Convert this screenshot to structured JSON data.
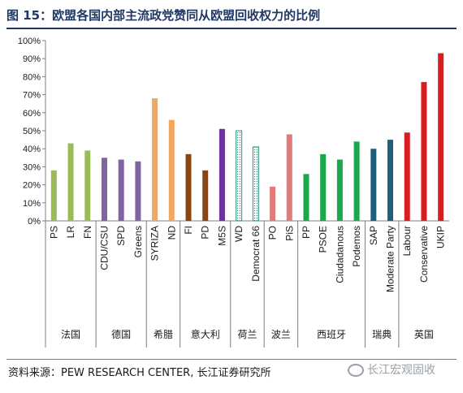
{
  "title": "图 15：欧盟各国内部主流政党赞同从欧盟回收权力的比例",
  "source": "资料来源：PEW RESEARCH CENTER, 长江证券研究所",
  "watermark": "长江宏观固收",
  "chart_data": {
    "type": "bar",
    "ylim": [
      0,
      100
    ],
    "yticks": [
      "0%",
      "10%",
      "20%",
      "30%",
      "40%",
      "50%",
      "60%",
      "70%",
      "80%",
      "90%",
      "100%"
    ],
    "groups": [
      {
        "name": "法国",
        "parties": [
          {
            "name": "PS",
            "value": 28,
            "color": "#9bbb59",
            "pattern": "solid"
          },
          {
            "name": "LR",
            "value": 43,
            "color": "#9bbb59",
            "pattern": "solid"
          },
          {
            "name": "FN",
            "value": 39,
            "color": "#9bbb59",
            "pattern": "solid"
          }
        ]
      },
      {
        "name": "德国",
        "parties": [
          {
            "name": "CDU/CSU",
            "value": 35,
            "color": "#8064a2",
            "pattern": "solid"
          },
          {
            "name": "SPD",
            "value": 34,
            "color": "#8064a2",
            "pattern": "solid"
          },
          {
            "name": "Greens",
            "value": 33,
            "color": "#8064a2",
            "pattern": "solid"
          }
        ]
      },
      {
        "name": "希腊",
        "parties": [
          {
            "name": "SYRIZA",
            "value": 68,
            "color": "#f0a860",
            "pattern": "solid"
          },
          {
            "name": "ND",
            "value": 56,
            "color": "#f0a860",
            "pattern": "solid"
          }
        ]
      },
      {
        "name": "意大利",
        "parties": [
          {
            "name": "FI",
            "value": 37,
            "color": "#8b4513",
            "pattern": "solid"
          },
          {
            "name": "PD",
            "value": 28,
            "color": "#8b4513",
            "pattern": "solid"
          },
          {
            "name": "M5S",
            "value": 51,
            "color": "#7030a0",
            "pattern": "solid"
          }
        ]
      },
      {
        "name": "荷兰",
        "parties": [
          {
            "name": "WD",
            "value": 50,
            "color": "#2f8f7a",
            "pattern": "dotted"
          },
          {
            "name": "Democrat 66",
            "value": 41,
            "color": "#2f8f7a",
            "pattern": "dotted"
          }
        ]
      },
      {
        "name": "波兰",
        "parties": [
          {
            "name": "PO",
            "value": 19,
            "color": "#e07b7b",
            "pattern": "solid"
          },
          {
            "name": "PiS",
            "value": 48,
            "color": "#e07b7b",
            "pattern": "solid"
          }
        ]
      },
      {
        "name": "西班牙",
        "parties": [
          {
            "name": "PP",
            "value": 26,
            "color": "#1aa84b",
            "pattern": "solid"
          },
          {
            "name": "PSOE",
            "value": 37,
            "color": "#1aa84b",
            "pattern": "solid"
          },
          {
            "name": "Ciudadanous",
            "value": 34,
            "color": "#1aa84b",
            "pattern": "solid"
          },
          {
            "name": "Podemos",
            "value": 44,
            "color": "#1aa84b",
            "pattern": "solid"
          }
        ]
      },
      {
        "name": "瑞典",
        "parties": [
          {
            "name": "SAP",
            "value": 40,
            "color": "#1f5f7a",
            "pattern": "solid"
          },
          {
            "name": "Moderate Party",
            "value": 45,
            "color": "#1f5f7a",
            "pattern": "solid"
          }
        ]
      },
      {
        "name": "英国",
        "parties": [
          {
            "name": "Labour",
            "value": 49,
            "color": "#d81e1e",
            "pattern": "solid"
          },
          {
            "name": "Conservative",
            "value": 77,
            "color": "#d81e1e",
            "pattern": "solid"
          },
          {
            "name": "UKIP",
            "value": 93,
            "color": "#d81e1e",
            "pattern": "solid"
          }
        ]
      }
    ]
  }
}
